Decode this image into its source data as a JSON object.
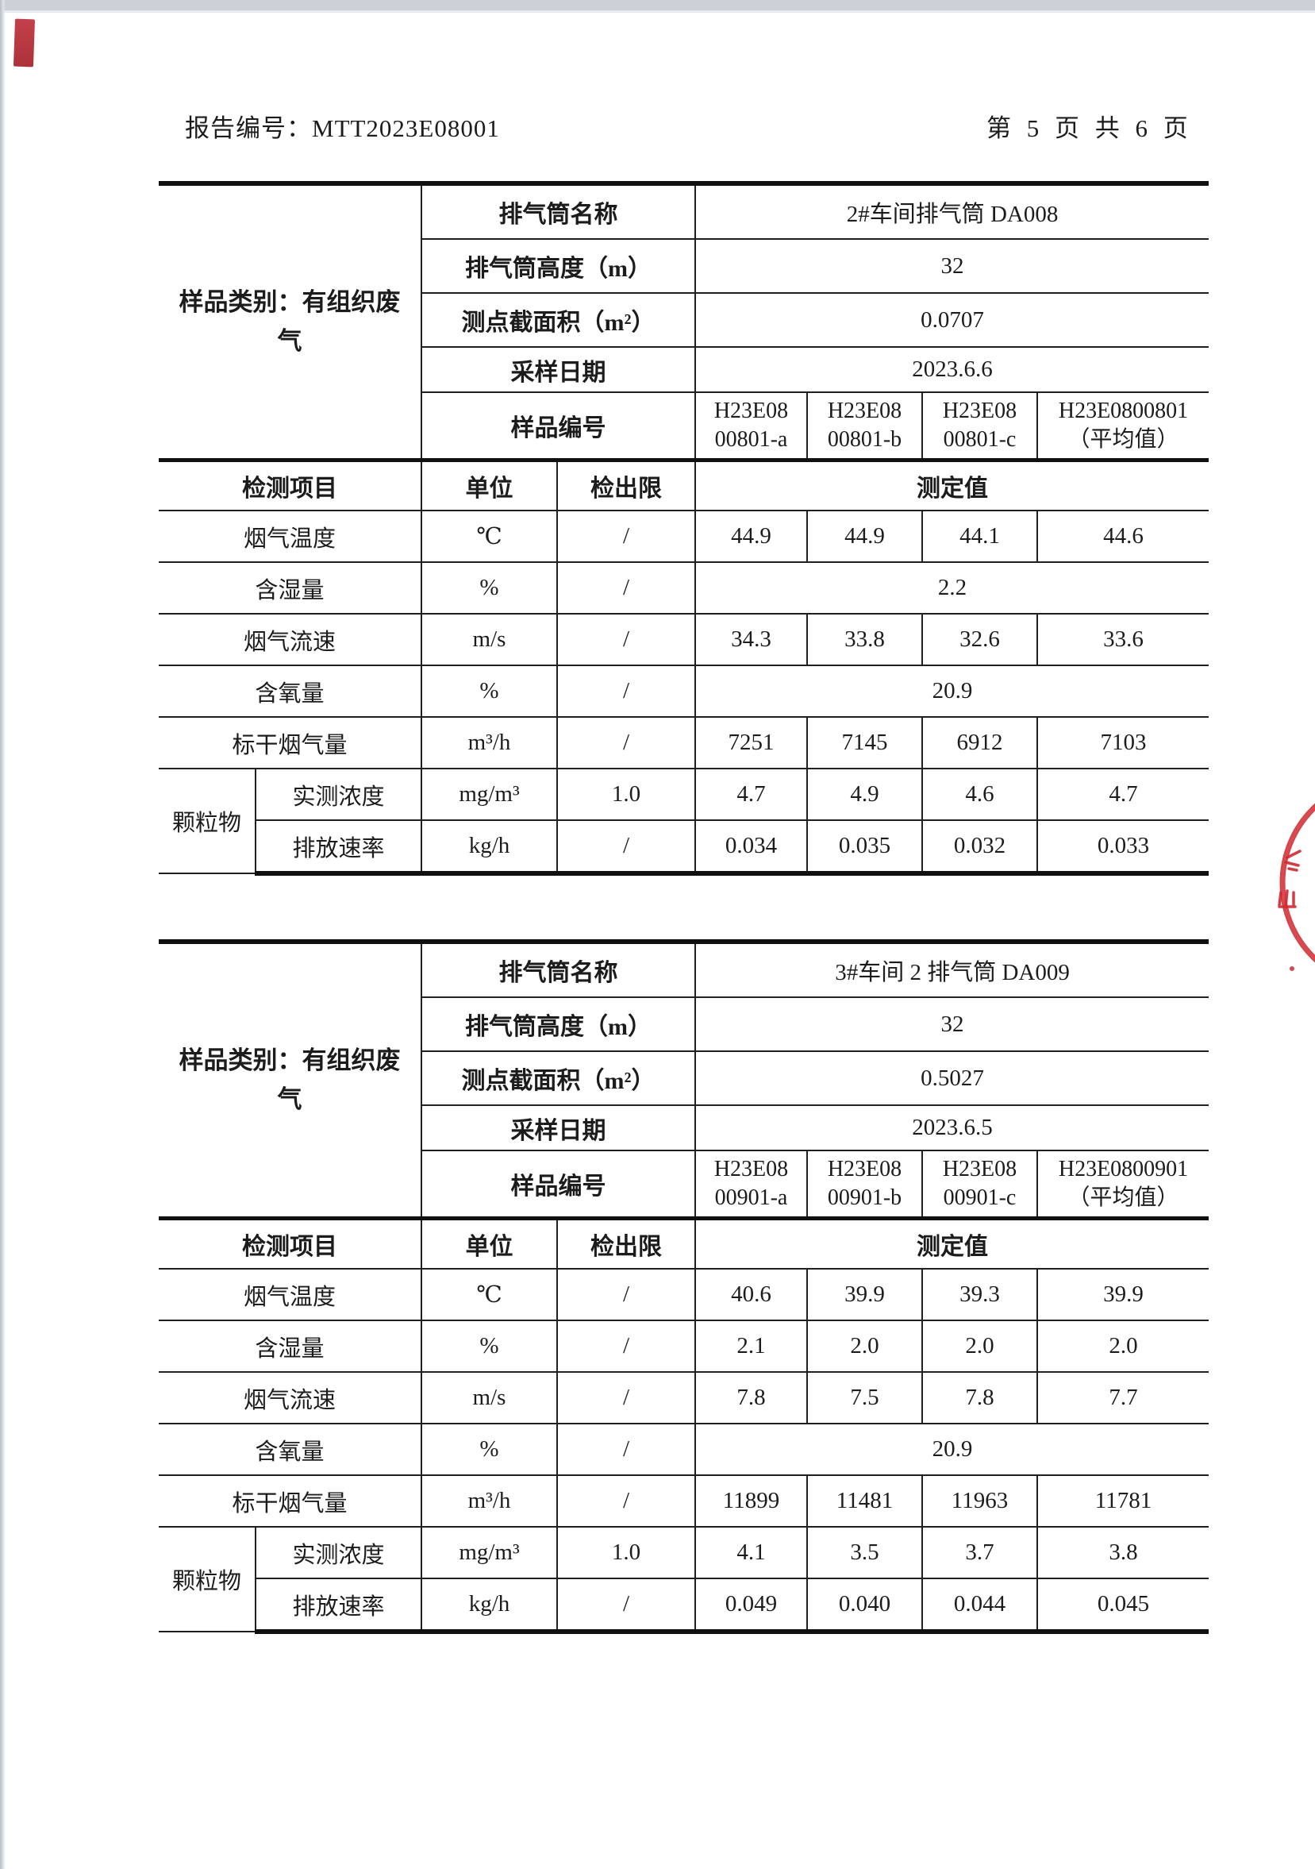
{
  "header": {
    "report_no": "报告编号：MTT2023E08001",
    "page_info": "第 5 页 共 6 页"
  },
  "stamp": {
    "color": "#cf2a30",
    "description": "red-round-seal-fragment"
  },
  "tables": [
    {
      "sample_category": "样品类别：有组织废气",
      "info_rows": [
        {
          "label": "排气筒名称",
          "value": "2#车间排气筒 DA008"
        },
        {
          "label": "排气筒高度（m）",
          "value": "32"
        },
        {
          "label": "测点截面积（m²）",
          "value": "0.0707"
        },
        {
          "label": "采样日期",
          "value": "2023.6.6"
        }
      ],
      "sample_no_label": "样品编号",
      "sample_nos": [
        "H23E08\n00801-a",
        "H23E08\n00801-b",
        "H23E08\n00801-c",
        "H23E0800801\n（平均值）"
      ],
      "columns": {
        "item": "检测项目",
        "unit": "单位",
        "limit": "检出限",
        "value": "测定值"
      },
      "rows": [
        {
          "item": "烟气温度",
          "unit": "℃",
          "limit": "/",
          "values": [
            "44.9",
            "44.9",
            "44.1",
            "44.6"
          ]
        },
        {
          "item": "含湿量",
          "unit": "%",
          "limit": "/",
          "values": [
            "2.2"
          ]
        },
        {
          "item": "烟气流速",
          "unit": "m/s",
          "limit": "/",
          "values": [
            "34.3",
            "33.8",
            "32.6",
            "33.6"
          ]
        },
        {
          "item": "含氧量",
          "unit": "%",
          "limit": "/",
          "values": [
            "20.9"
          ]
        },
        {
          "item": "标干烟气量",
          "unit": "m³/h",
          "limit": "/",
          "values": [
            "7251",
            "7145",
            "6912",
            "7103"
          ]
        },
        {
          "group": "颗粒物",
          "item": "实测浓度",
          "unit": "mg/m³",
          "limit": "1.0",
          "values": [
            "4.7",
            "4.9",
            "4.6",
            "4.7"
          ]
        },
        {
          "group": "颗粒物",
          "item": "排放速率",
          "unit": "kg/h",
          "limit": "/",
          "values": [
            "0.034",
            "0.035",
            "0.032",
            "0.033"
          ]
        }
      ]
    },
    {
      "sample_category": "样品类别：有组织废气",
      "info_rows": [
        {
          "label": "排气筒名称",
          "value": "3#车间 2 排气筒 DA009"
        },
        {
          "label": "排气筒高度（m）",
          "value": "32"
        },
        {
          "label": "测点截面积（m²）",
          "value": "0.5027"
        },
        {
          "label": "采样日期",
          "value": "2023.6.5"
        }
      ],
      "sample_no_label": "样品编号",
      "sample_nos": [
        "H23E08\n00901-a",
        "H23E08\n00901-b",
        "H23E08\n00901-c",
        "H23E0800901\n（平均值）"
      ],
      "columns": {
        "item": "检测项目",
        "unit": "单位",
        "limit": "检出限",
        "value": "测定值"
      },
      "rows": [
        {
          "item": "烟气温度",
          "unit": "℃",
          "limit": "/",
          "values": [
            "40.6",
            "39.9",
            "39.3",
            "39.9"
          ]
        },
        {
          "item": "含湿量",
          "unit": "%",
          "limit": "/",
          "values": [
            "2.1",
            "2.0",
            "2.0",
            "2.0"
          ]
        },
        {
          "item": "烟气流速",
          "unit": "m/s",
          "limit": "/",
          "values": [
            "7.8",
            "7.5",
            "7.8",
            "7.7"
          ]
        },
        {
          "item": "含氧量",
          "unit": "%",
          "limit": "/",
          "values": [
            "20.9"
          ]
        },
        {
          "item": "标干烟气量",
          "unit": "m³/h",
          "limit": "/",
          "values": [
            "11899",
            "11481",
            "11963",
            "11781"
          ]
        },
        {
          "group": "颗粒物",
          "item": "实测浓度",
          "unit": "mg/m³",
          "limit": "1.0",
          "values": [
            "4.1",
            "3.5",
            "3.7",
            "3.8"
          ]
        },
        {
          "group": "颗粒物",
          "item": "排放速率",
          "unit": "kg/h",
          "limit": "/",
          "values": [
            "0.049",
            "0.040",
            "0.044",
            "0.045"
          ]
        }
      ]
    }
  ]
}
